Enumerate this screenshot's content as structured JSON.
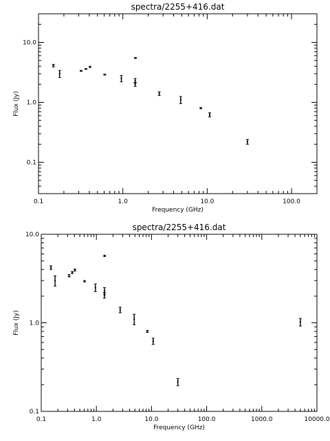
{
  "chart_data": [
    {
      "type": "scatter",
      "title": "spectra/2255+416.dat",
      "xlabel": "Frequency (GHz)",
      "ylabel": "Flux (Jy)",
      "xscale": "log",
      "yscale": "log",
      "xlim": [
        0.1,
        200
      ],
      "ylim": [
        0.03,
        30
      ],
      "xticks": [
        {
          "v": 0.1,
          "label": "0.1"
        },
        {
          "v": 1,
          "label": "1.0"
        },
        {
          "v": 10,
          "label": "10.0"
        },
        {
          "v": 100,
          "label": "100.0"
        }
      ],
      "yticks": [
        {
          "v": 0.1,
          "label": "0.1"
        },
        {
          "v": 1,
          "label": "1.0"
        },
        {
          "v": 10,
          "label": "10.0"
        }
      ],
      "points": [
        {
          "x": 0.15,
          "y": 4.1,
          "lo": 3.9,
          "hi": 4.3
        },
        {
          "x": 0.178,
          "y": 3.0,
          "lo": 2.6,
          "hi": 3.4
        },
        {
          "x": 0.32,
          "y": 3.35,
          "lo": 3.3,
          "hi": 3.4
        },
        {
          "x": 0.365,
          "y": 3.6,
          "lo": 3.55,
          "hi": 3.65
        },
        {
          "x": 0.408,
          "y": 3.9,
          "lo": 3.8,
          "hi": 4.0
        },
        {
          "x": 0.61,
          "y": 2.9,
          "lo": 2.85,
          "hi": 2.95
        },
        {
          "x": 0.96,
          "y": 2.5,
          "lo": 2.2,
          "hi": 2.8
        },
        {
          "x": 1.4,
          "y": 2.3,
          "lo": 2.1,
          "hi": 2.5
        },
        {
          "x": 1.4,
          "y": 2.0,
          "lo": 1.85,
          "hi": 2.15
        },
        {
          "x": 1.41,
          "y": 5.5,
          "lo": 5.4,
          "hi": 5.6
        },
        {
          "x": 2.7,
          "y": 1.4,
          "lo": 1.3,
          "hi": 1.5
        },
        {
          "x": 4.85,
          "y": 1.1,
          "lo": 0.95,
          "hi": 1.25
        },
        {
          "x": 8.4,
          "y": 0.8,
          "lo": 0.78,
          "hi": 0.82
        },
        {
          "x": 10.7,
          "y": 0.62,
          "lo": 0.57,
          "hi": 0.67
        },
        {
          "x": 30,
          "y": 0.22,
          "lo": 0.2,
          "hi": 0.24
        }
      ]
    },
    {
      "type": "scatter",
      "title": "spectra/2255+416.dat",
      "xlabel": "Frequency (GHz)",
      "ylabel": "Flux (Jy)",
      "xscale": "log",
      "yscale": "log",
      "xlim": [
        0.1,
        10000
      ],
      "ylim": [
        0.1,
        10
      ],
      "xticks": [
        {
          "v": 0.1,
          "label": "0.1"
        },
        {
          "v": 1,
          "label": "1.0"
        },
        {
          "v": 10,
          "label": "10.0"
        },
        {
          "v": 100,
          "label": "100.0"
        },
        {
          "v": 1000,
          "label": "1000.0"
        },
        {
          "v": 10000,
          "label": "10000.0"
        }
      ],
      "yticks": [
        {
          "v": 0.1,
          "label": "0.1"
        },
        {
          "v": 1,
          "label": "1.0"
        },
        {
          "v": 10,
          "label": "10.0"
        }
      ],
      "points": [
        {
          "x": 0.15,
          "y": 4.2,
          "lo": 4.0,
          "hi": 4.4
        },
        {
          "x": 0.178,
          "y": 3.0,
          "lo": 2.6,
          "hi": 3.4
        },
        {
          "x": 0.32,
          "y": 3.4,
          "lo": 3.3,
          "hi": 3.5
        },
        {
          "x": 0.365,
          "y": 3.7,
          "lo": 3.6,
          "hi": 3.8
        },
        {
          "x": 0.408,
          "y": 3.95,
          "lo": 3.85,
          "hi": 4.05
        },
        {
          "x": 0.61,
          "y": 2.95,
          "lo": 2.9,
          "hi": 3.0
        },
        {
          "x": 0.96,
          "y": 2.5,
          "lo": 2.25,
          "hi": 2.75
        },
        {
          "x": 1.4,
          "y": 2.3,
          "lo": 2.1,
          "hi": 2.5
        },
        {
          "x": 1.4,
          "y": 2.05,
          "lo": 1.9,
          "hi": 2.2
        },
        {
          "x": 1.41,
          "y": 5.7,
          "lo": 5.6,
          "hi": 5.8
        },
        {
          "x": 2.7,
          "y": 1.4,
          "lo": 1.3,
          "hi": 1.5
        },
        {
          "x": 4.85,
          "y": 1.1,
          "lo": 0.95,
          "hi": 1.25
        },
        {
          "x": 8.4,
          "y": 0.8,
          "lo": 0.78,
          "hi": 0.82
        },
        {
          "x": 10.7,
          "y": 0.62,
          "lo": 0.57,
          "hi": 0.67
        },
        {
          "x": 30,
          "y": 0.215,
          "lo": 0.195,
          "hi": 0.235
        },
        {
          "x": 5000,
          "y": 1.02,
          "lo": 0.92,
          "hi": 1.12
        }
      ]
    }
  ]
}
